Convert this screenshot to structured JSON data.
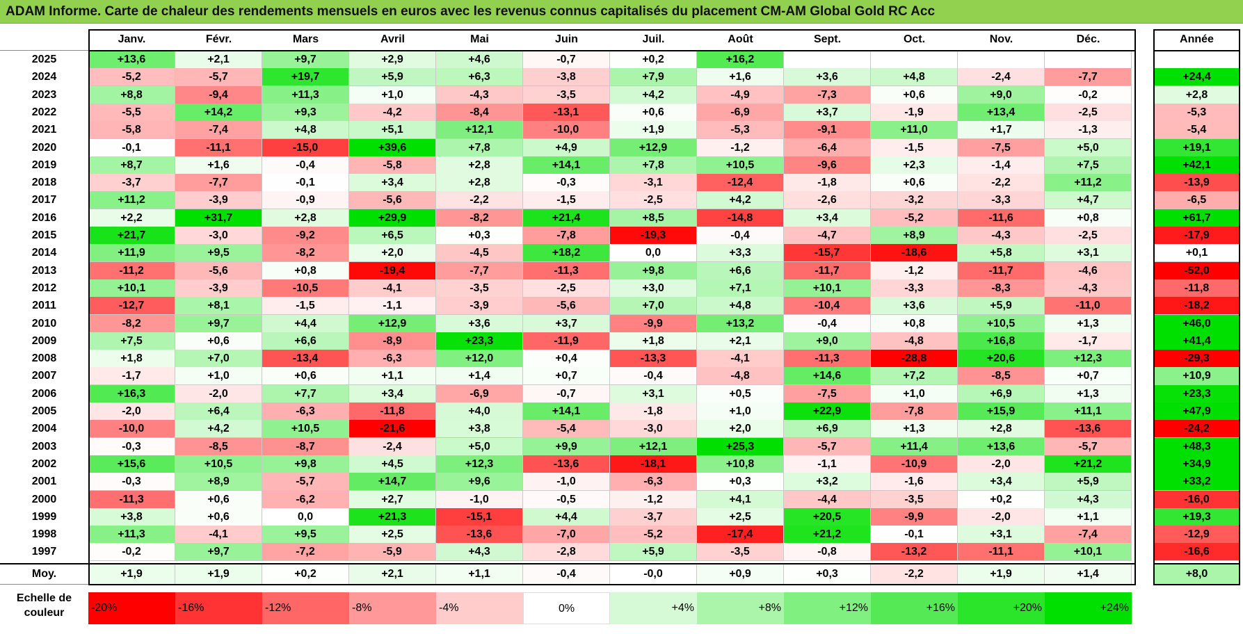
{
  "title": "ADAM Informe. Carte de chaleur des rendements mensuels en euros avec les revenus connus capitalisés du placement CM-AM Global Gold RC Acc",
  "chart_data": {
    "type": "heatmap",
    "title": "ADAM Informe. Carte de chaleur des rendements mensuels en euros avec les revenus connus capitalisés du placement CM-AM Global Gold RC Acc",
    "months": [
      "Janv.",
      "Févr.",
      "Mars",
      "Avril",
      "Mai",
      "Juin",
      "Juil.",
      "Août",
      "Sept.",
      "Oct.",
      "Nov.",
      "Déc."
    ],
    "year_header": "Année",
    "rows": [
      {
        "year": "2025",
        "values": [
          "+13,6",
          "+2,1",
          "+9,7",
          "+2,9",
          "+4,6",
          "-0,7",
          "+0,2",
          "+16,2",
          "",
          "",
          "",
          ""
        ],
        "annual": ""
      },
      {
        "year": "2024",
        "values": [
          "-5,2",
          "-5,7",
          "+19,7",
          "+5,9",
          "+6,3",
          "-3,8",
          "+7,9",
          "+1,6",
          "+3,6",
          "+4,8",
          "-2,4",
          "-7,7"
        ],
        "annual": "+24,4"
      },
      {
        "year": "2023",
        "values": [
          "+8,8",
          "-9,4",
          "+11,3",
          "+1,0",
          "-4,3",
          "-3,5",
          "+4,2",
          "-4,9",
          "-7,3",
          "+0,6",
          "+9,0",
          "-0,2"
        ],
        "annual": "+2,8"
      },
      {
        "year": "2022",
        "values": [
          "-5,5",
          "+14,2",
          "+9,3",
          "-4,2",
          "-8,4",
          "-13,1",
          "+0,6",
          "-6,9",
          "+3,7",
          "-1,9",
          "+13,4",
          "-2,5"
        ],
        "annual": "-5,3"
      },
      {
        "year": "2021",
        "values": [
          "-5,8",
          "-7,4",
          "+4,8",
          "+5,1",
          "+12,1",
          "-10,0",
          "+1,9",
          "-5,3",
          "-9,1",
          "+11,0",
          "+1,7",
          "-1,3"
        ],
        "annual": "-5,4"
      },
      {
        "year": "2020",
        "values": [
          "-0,1",
          "-11,1",
          "-15,0",
          "+39,6",
          "+7,8",
          "+4,9",
          "+12,9",
          "-1,2",
          "-6,4",
          "-1,5",
          "-7,5",
          "+5,0"
        ],
        "annual": "+19,1"
      },
      {
        "year": "2019",
        "values": [
          "+8,7",
          "+1,6",
          "-0,4",
          "-5,8",
          "+2,8",
          "+14,1",
          "+7,8",
          "+10,5",
          "-9,6",
          "+2,3",
          "-1,4",
          "+7,5"
        ],
        "annual": "+42,1"
      },
      {
        "year": "2018",
        "values": [
          "-3,7",
          "-7,7",
          "-0,1",
          "+3,4",
          "+2,8",
          "-0,3",
          "-3,1",
          "-12,4",
          "-1,8",
          "+0,6",
          "-2,2",
          "+11,2"
        ],
        "annual": "-13,9"
      },
      {
        "year": "2017",
        "values": [
          "+11,2",
          "-3,9",
          "-0,9",
          "-5,6",
          "-2,2",
          "-1,5",
          "-2,5",
          "+4,2",
          "-2,6",
          "-3,2",
          "-3,3",
          "+4,7"
        ],
        "annual": "-6,5"
      },
      {
        "year": "2016",
        "values": [
          "+2,2",
          "+31,7",
          "+2,8",
          "+29,9",
          "-8,2",
          "+21,4",
          "+8,5",
          "-14,8",
          "+3,4",
          "-5,2",
          "-11,6",
          "+0,8"
        ],
        "annual": "+61,7"
      },
      {
        "year": "2015",
        "values": [
          "+21,7",
          "-3,0",
          "-9,2",
          "+6,5",
          "+0,3",
          "-7,8",
          "-19,3",
          "-0,4",
          "-4,7",
          "+8,9",
          "-4,3",
          "-2,5"
        ],
        "annual": "-17,9"
      },
      {
        "year": "2014",
        "values": [
          "+11,9",
          "+9,5",
          "-8,2",
          "+2,0",
          "-4,5",
          "+18,2",
          "0,0",
          "+3,3",
          "-15,7",
          "-18,6",
          "+5,8",
          "+3,1"
        ],
        "annual": "+0,1"
      },
      {
        "year": "2013",
        "values": [
          "-11,2",
          "-5,6",
          "+0,8",
          "-19,4",
          "-7,7",
          "-11,3",
          "+9,8",
          "+6,6",
          "-11,7",
          "-1,2",
          "-11,7",
          "-4,6"
        ],
        "annual": "-52,0"
      },
      {
        "year": "2012",
        "values": [
          "+10,1",
          "-3,9",
          "-10,5",
          "-4,1",
          "-3,5",
          "-2,5",
          "+3,0",
          "+7,1",
          "+10,1",
          "-3,3",
          "-8,3",
          "-4,3"
        ],
        "annual": "-11,8"
      },
      {
        "year": "2011",
        "values": [
          "-12,7",
          "+8,1",
          "-1,5",
          "-1,1",
          "-3,9",
          "-5,6",
          "+7,0",
          "+4,8",
          "-10,4",
          "+3,6",
          "+5,9",
          "-11,0"
        ],
        "annual": "-18,2"
      },
      {
        "year": "2010",
        "values": [
          "-8,2",
          "+9,7",
          "+4,4",
          "+12,9",
          "+3,6",
          "+3,7",
          "-9,9",
          "+13,2",
          "-0,4",
          "+0,8",
          "+10,5",
          "+1,3"
        ],
        "annual": "+46,0"
      },
      {
        "year": "2009",
        "values": [
          "+7,5",
          "+0,6",
          "+6,6",
          "-8,9",
          "+23,3",
          "-11,9",
          "+1,8",
          "+2,1",
          "+9,0",
          "-4,8",
          "+16,8",
          "-1,7"
        ],
        "annual": "+41,4"
      },
      {
        "year": "2008",
        "values": [
          "+1,8",
          "+7,0",
          "-13,4",
          "-6,3",
          "+12,0",
          "+0,4",
          "-13,3",
          "-4,1",
          "-11,3",
          "-28,8",
          "+20,6",
          "+12,3"
        ],
        "annual": "-29,3"
      },
      {
        "year": "2007",
        "values": [
          "-1,7",
          "+1,0",
          "+0,6",
          "+1,1",
          "+1,4",
          "+0,7",
          "-0,4",
          "-4,8",
          "+14,6",
          "+7,2",
          "-8,5",
          "+0,7"
        ],
        "annual": "+10,9"
      },
      {
        "year": "2006",
        "values": [
          "+16,3",
          "-2,0",
          "+7,7",
          "+3,4",
          "-6,9",
          "-0,7",
          "+3,1",
          "+0,5",
          "-7,5",
          "+1,0",
          "+6,9",
          "+1,3"
        ],
        "annual": "+23,3"
      },
      {
        "year": "2005",
        "values": [
          "-2,0",
          "+6,4",
          "-6,3",
          "-11,8",
          "+4,0",
          "+14,1",
          "-1,8",
          "+1,0",
          "+22,9",
          "-7,8",
          "+15,9",
          "+11,1"
        ],
        "annual": "+47,9"
      },
      {
        "year": "2004",
        "values": [
          "-10,0",
          "+4,2",
          "+10,5",
          "-21,6",
          "+3,8",
          "-5,4",
          "-3,0",
          "+2,0",
          "+6,9",
          "+1,3",
          "+2,8",
          "-13,6"
        ],
        "annual": "-24,2"
      },
      {
        "year": "2003",
        "values": [
          "-0,3",
          "-8,5",
          "-8,7",
          "-2,4",
          "+5,0",
          "+9,9",
          "+12,1",
          "+25,3",
          "-5,7",
          "+11,4",
          "+13,6",
          "-5,7"
        ],
        "annual": "+48,3"
      },
      {
        "year": "2002",
        "values": [
          "+15,6",
          "+10,5",
          "+9,8",
          "+4,5",
          "+12,3",
          "-13,6",
          "-18,1",
          "+10,8",
          "-1,1",
          "-10,9",
          "-2,0",
          "+21,2"
        ],
        "annual": "+34,9"
      },
      {
        "year": "2001",
        "values": [
          "-0,3",
          "+8,9",
          "-5,7",
          "+14,7",
          "+9,6",
          "-1,0",
          "-6,3",
          "+0,3",
          "+3,2",
          "-1,6",
          "+3,4",
          "+5,9"
        ],
        "annual": "+33,2"
      },
      {
        "year": "2000",
        "values": [
          "-11,3",
          "+0,6",
          "-6,2",
          "+2,7",
          "-1,0",
          "-0,5",
          "-1,2",
          "+4,1",
          "-4,4",
          "-3,5",
          "+0,2",
          "+4,3"
        ],
        "annual": "-16,0"
      },
      {
        "year": "1999",
        "values": [
          "+3,8",
          "+0,6",
          "0,0",
          "+21,3",
          "-15,1",
          "+4,4",
          "-3,7",
          "+2,5",
          "+20,5",
          "-9,9",
          "-2,0",
          "+1,1"
        ],
        "annual": "+19,3"
      },
      {
        "year": "1998",
        "values": [
          "+11,3",
          "-4,1",
          "+9,5",
          "+2,5",
          "-13,6",
          "-7,0",
          "-5,2",
          "-17,4",
          "+21,2",
          "-0,1",
          "+3,1",
          "-7,4"
        ],
        "annual": "-12,9"
      },
      {
        "year": "1997",
        "values": [
          "-0,2",
          "+9,7",
          "-7,2",
          "-5,9",
          "+4,3",
          "-2,8",
          "+5,9",
          "-3,5",
          "-0,8",
          "-13,2",
          "-11,1",
          "+10,1"
        ],
        "annual": "-16,6"
      }
    ],
    "average": {
      "label": "Moy.",
      "values": [
        "+1,9",
        "+1,9",
        "+0,2",
        "+2,1",
        "+1,1",
        "-0,4",
        "-0,0",
        "+0,9",
        "+0,3",
        "-2,2",
        "+1,9",
        "+1,4"
      ],
      "annual": "+8,0"
    },
    "scale": {
      "label_line1": "Echelle de",
      "label_line2": "couleur",
      "items": [
        {
          "label": "-20%",
          "value": -20
        },
        {
          "label": "-16%",
          "value": -16
        },
        {
          "label": "-12%",
          "value": -12
        },
        {
          "label": "-8%",
          "value": -8
        },
        {
          "label": "-4%",
          "value": -4
        },
        {
          "label": "0%",
          "value": 0
        },
        {
          "label": "+4%",
          "value": 4
        },
        {
          "label": "+8%",
          "value": 8
        },
        {
          "label": "+12%",
          "value": 12
        },
        {
          "label": "+16%",
          "value": 16
        },
        {
          "label": "+20%",
          "value": 20
        },
        {
          "label": "+24%",
          "value": 24
        }
      ]
    },
    "colors": {
      "negative_max": "#ff0000",
      "neutral": "#ffffff",
      "positive_max": "#00e000",
      "title_bg": "#92d050"
    }
  }
}
